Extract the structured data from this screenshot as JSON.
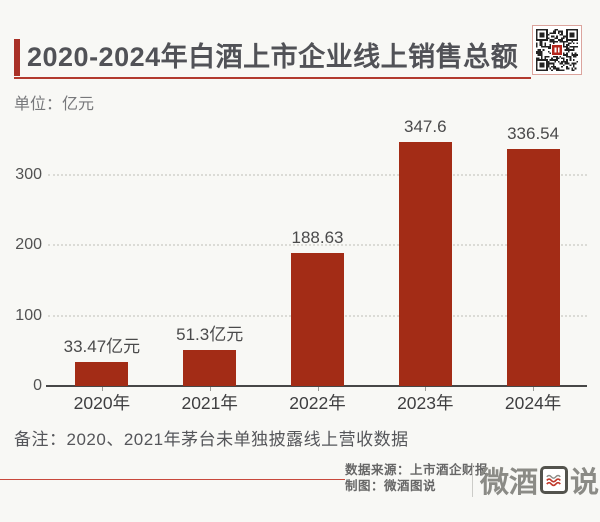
{
  "header": {
    "title": "2020-2024年白酒上市企业线上销售总额",
    "unit_label": "单位：亿元"
  },
  "icons": {
    "qr": "qr-code-icon",
    "logo_wave": "wave-lines-icon"
  },
  "chart_data": {
    "type": "bar",
    "title": "2020-2024年白酒上市企业线上销售总额",
    "unit": "亿元",
    "categories": [
      "2020年",
      "2021年",
      "2022年",
      "2023年",
      "2024年"
    ],
    "values": [
      33.47,
      51.3,
      188.63,
      347.6,
      336.54
    ],
    "value_labels": [
      "33.47亿元",
      "51.3亿元",
      "188.63",
      "347.6",
      "336.54"
    ],
    "xlabel": "",
    "ylabel": "",
    "ylim": [
      0,
      380
    ],
    "yticks": [
      0,
      100,
      200,
      300
    ],
    "grid": "dotted-horizontal",
    "legend": "none",
    "bar_color": "#A32C16"
  },
  "footnote": "备注：2020、2021年茅台未单独披露线上营收数据",
  "footer": {
    "source_line": "数据来源：上市酒企财报",
    "credit_line": "制图：微酒图说",
    "logo": {
      "left": "微酒",
      "boxed_char": "图",
      "right": "说"
    }
  },
  "colors": {
    "bar": "#A32C16",
    "title_accent": "#A93127",
    "title_underline": "#B23A2E",
    "footer_divider": "#C8493C",
    "qr_center": "#B5281E",
    "logo_wave": "#C0392B",
    "background": "#F8F8F5"
  }
}
